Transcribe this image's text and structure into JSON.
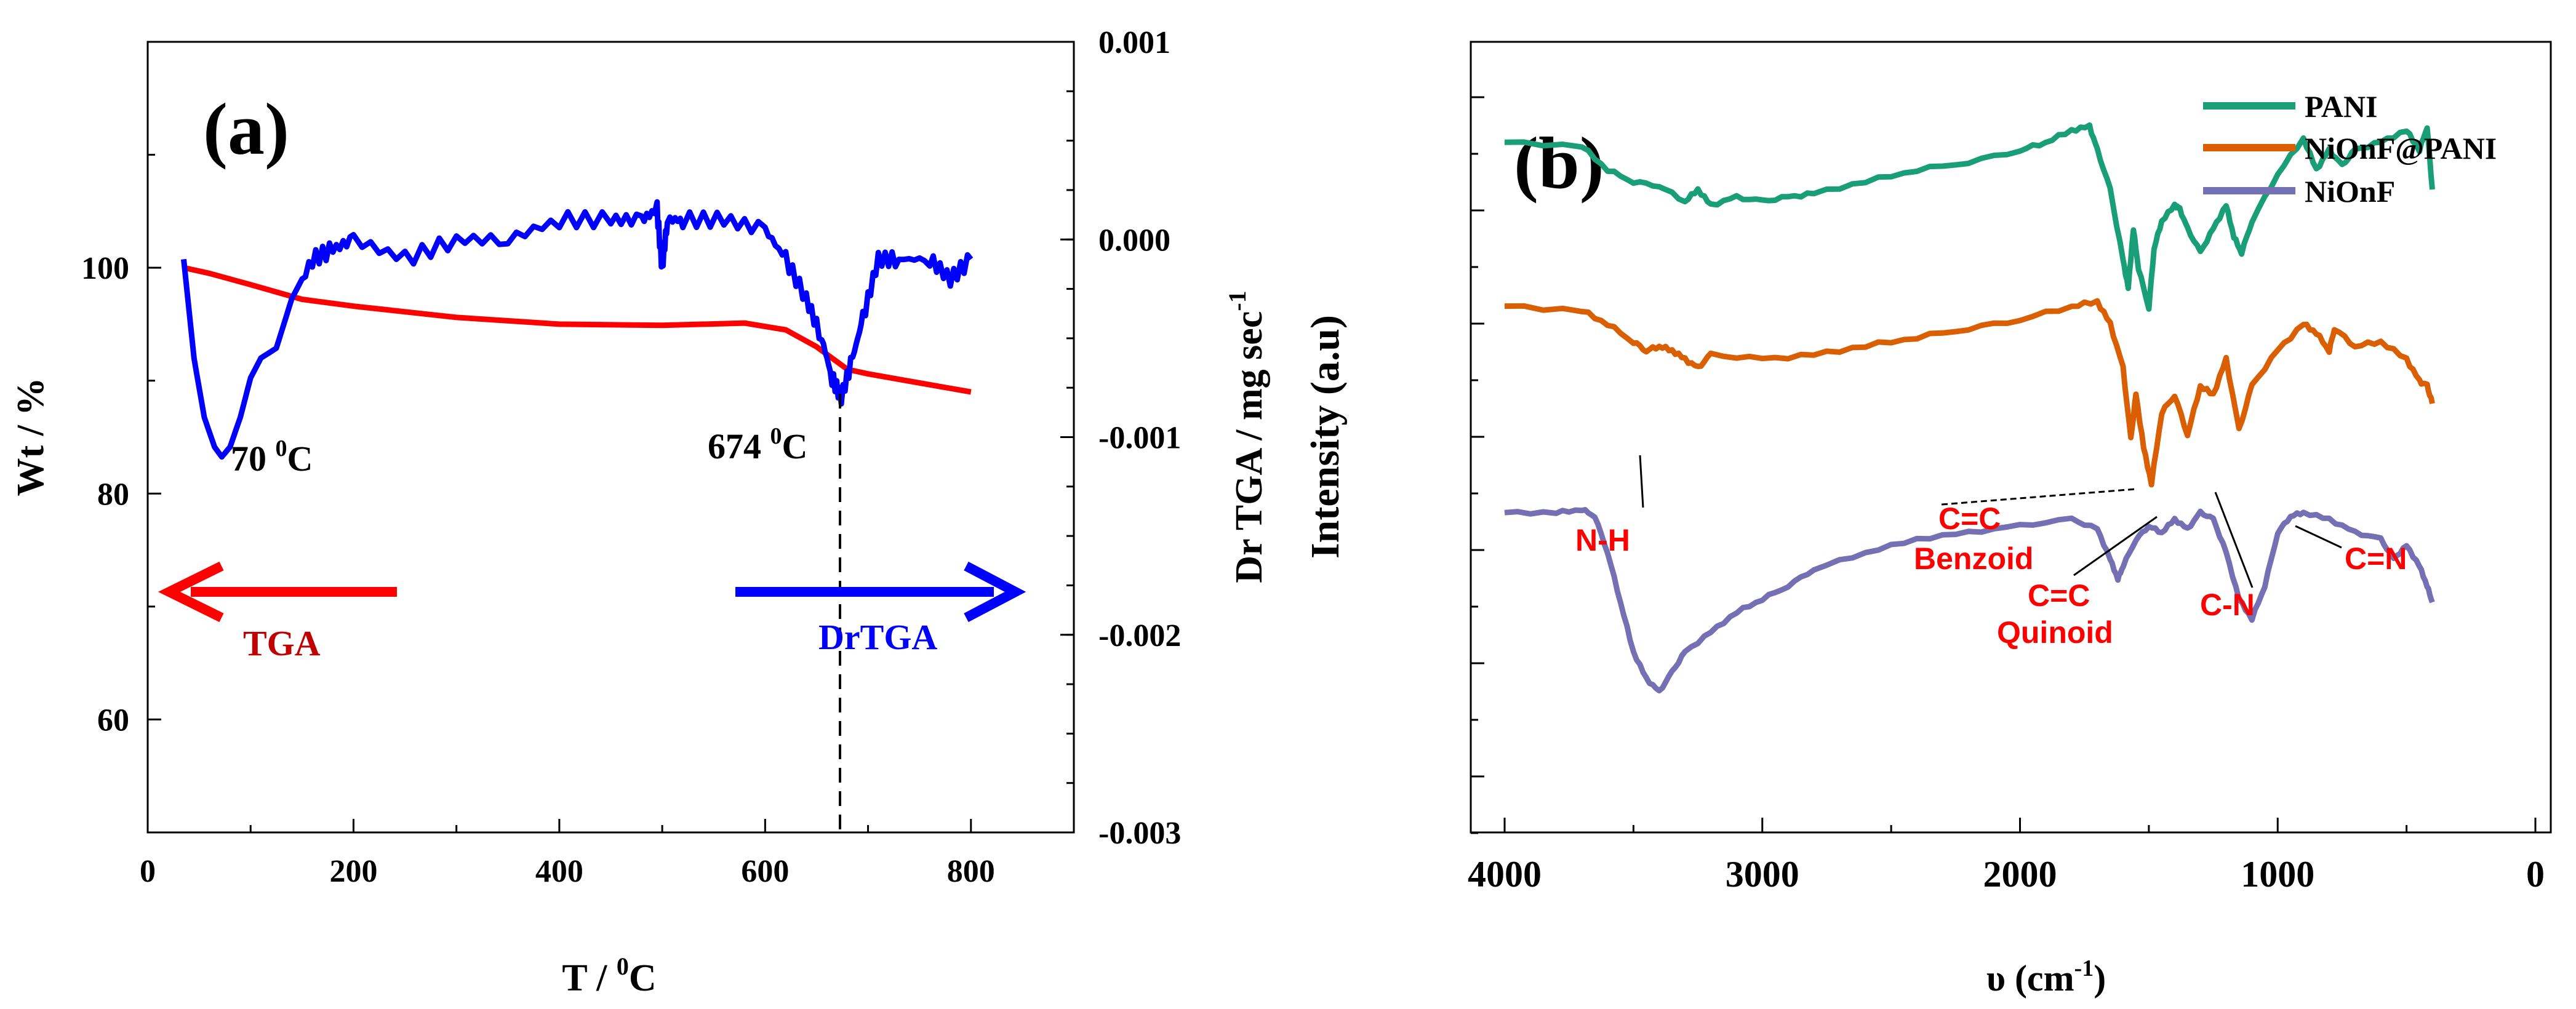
{
  "chart_data": [
    {
      "panel": "(a)",
      "type": "line",
      "xlabel_base": "T / ",
      "xlabel_sup": "0",
      "xlabel_end": "C",
      "ylabel_left": "Wt / %",
      "ylabel_right_base": "Dr TGA / mg sec",
      "ylabel_right_sup": "-1",
      "xlim": [
        0,
        900
      ],
      "ylim_left": [
        50,
        120
      ],
      "ylim_right": [
        -0.003,
        0.001
      ],
      "x_ticks": [
        "0",
        "200",
        "400",
        "600",
        "800"
      ],
      "y_ticks_left": [
        "60",
        "80",
        "100"
      ],
      "y_ticks_right": [
        "0.001",
        "0.000",
        "-0.001",
        "-0.002",
        "-0.003"
      ],
      "series": [
        {
          "name": "TGA",
          "axis": "left",
          "color": "#ff0000",
          "x": [
            35,
            60,
            100,
            150,
            200,
            300,
            400,
            500,
            580,
            620,
            650,
            680,
            700,
            750,
            800
          ],
          "y": [
            100,
            99.5,
            98.5,
            97.2,
            96.6,
            95.6,
            95.0,
            94.9,
            95.1,
            94.5,
            93.0,
            91.0,
            90.6,
            89.8,
            89.0
          ]
        },
        {
          "name": "DrTGA",
          "axis": "right",
          "color": "#0000ff",
          "x": [
            35,
            45,
            55,
            65,
            72,
            80,
            90,
            100,
            110,
            125,
            140,
            160,
            180,
            200,
            250,
            300,
            350,
            400,
            450,
            480,
            495,
            500,
            505,
            520,
            560,
            600,
            620,
            640,
            655,
            665,
            674,
            685,
            695,
            710,
            730,
            760,
            780,
            800
          ],
          "y": [
            -0.0001,
            -0.0006,
            -0.0009,
            -0.00105,
            -0.0011,
            -0.00105,
            -0.0009,
            -0.0007,
            -0.0006,
            -0.00055,
            -0.0003,
            -0.0001,
            -5e-05,
            0.0,
            -0.0001,
            0.0,
            0.0,
            0.0001,
            0.0001,
            0.0001,
            0.00015,
            -0.00015,
            0.0001,
            0.0001,
            0.0001,
            5e-05,
            -0.0001,
            -0.0003,
            -0.0005,
            -0.0007,
            -0.0008,
            -0.0006,
            -0.0004,
            -0.0001,
            -0.0001,
            -0.0001,
            -0.0002,
            -0.0001
          ]
        }
      ],
      "annotations": [
        {
          "id": "peak1",
          "base": "70 ",
          "sup": "0",
          "end": "C"
        },
        {
          "id": "peak2",
          "base": "674 ",
          "sup": "0",
          "end": "C"
        },
        {
          "id": "tga_label",
          "text": "TGA"
        },
        {
          "id": "drtga_label",
          "text": "DrTGA"
        }
      ]
    },
    {
      "panel": "(b)",
      "type": "line",
      "xlabel_base": "υ (cm",
      "xlabel_sup": "-1",
      "xlabel_end": ")",
      "ylabel": "Intensity (a.u)",
      "xlim": [
        4000,
        0
      ],
      "x_ticks": [
        "4000",
        "3000",
        "2000",
        "1000",
        "0"
      ],
      "series": [
        {
          "name": "PANI",
          "color": "#1a9e77",
          "x": [
            4000,
            3700,
            3600,
            3500,
            3400,
            3300,
            3250,
            3200,
            3100,
            3000,
            2900,
            2800,
            2600,
            2400,
            2200,
            2000,
            1900,
            1800,
            1730,
            1700,
            1650,
            1600,
            1580,
            1560,
            1540,
            1500,
            1480,
            1450,
            1400,
            1380,
            1350,
            1300,
            1250,
            1200,
            1170,
            1140,
            1100,
            1000,
            900,
            850,
            800,
            750,
            700,
            600,
            500,
            450,
            420,
            400
          ],
          "y": [
            0.92,
            0.91,
            0.85,
            0.82,
            0.81,
            0.77,
            0.8,
            0.76,
            0.78,
            0.77,
            0.78,
            0.79,
            0.82,
            0.85,
            0.87,
            0.9,
            0.92,
            0.95,
            0.96,
            0.9,
            0.8,
            0.62,
            0.55,
            0.7,
            0.6,
            0.5,
            0.65,
            0.72,
            0.76,
            0.75,
            0.7,
            0.64,
            0.7,
            0.76,
            0.68,
            0.64,
            0.72,
            0.84,
            0.93,
            0.85,
            0.9,
            0.86,
            0.9,
            0.92,
            0.95,
            0.9,
            0.96,
            0.8
          ]
        },
        {
          "name": "NiOnF@PANI",
          "color": "#d95f02",
          "x": [
            4000,
            3700,
            3600,
            3500,
            3450,
            3400,
            3350,
            3300,
            3250,
            3200,
            3000,
            2800,
            2600,
            2400,
            2200,
            2000,
            1800,
            1700,
            1650,
            1600,
            1570,
            1550,
            1520,
            1490,
            1450,
            1400,
            1350,
            1300,
            1250,
            1200,
            1150,
            1100,
            1000,
            900,
            850,
            800,
            780,
            700,
            600,
            500,
            450,
            420,
            400
          ],
          "y": [
            0.92,
            0.91,
            0.88,
            0.84,
            0.82,
            0.83,
            0.82,
            0.8,
            0.78,
            0.81,
            0.8,
            0.81,
            0.83,
            0.85,
            0.87,
            0.89,
            0.92,
            0.93,
            0.88,
            0.78,
            0.62,
            0.72,
            0.6,
            0.52,
            0.68,
            0.72,
            0.63,
            0.74,
            0.72,
            0.8,
            0.64,
            0.74,
            0.82,
            0.88,
            0.86,
            0.82,
            0.87,
            0.83,
            0.84,
            0.8,
            0.75,
            0.74,
            0.7
          ]
        },
        {
          "name": "NiOnF",
          "color": "#7570b3",
          "x": [
            4000,
            3800,
            3700,
            3650,
            3600,
            3550,
            3500,
            3450,
            3400,
            3350,
            3300,
            3200,
            3100,
            3000,
            2900,
            2800,
            2600,
            2400,
            2200,
            2000,
            1800,
            1700,
            1650,
            1620,
            1600,
            1550,
            1500,
            1450,
            1400,
            1350,
            1300,
            1250,
            1200,
            1150,
            1100,
            1050,
            1000,
            950,
            900,
            800,
            700,
            600,
            550,
            500,
            450,
            420,
            400
          ],
          "y": [
            0.92,
            0.92,
            0.93,
            0.91,
            0.8,
            0.65,
            0.5,
            0.42,
            0.38,
            0.44,
            0.5,
            0.56,
            0.62,
            0.66,
            0.7,
            0.75,
            0.8,
            0.84,
            0.86,
            0.88,
            0.9,
            0.87,
            0.78,
            0.72,
            0.76,
            0.84,
            0.88,
            0.86,
            0.9,
            0.87,
            0.92,
            0.9,
            0.8,
            0.66,
            0.6,
            0.7,
            0.86,
            0.91,
            0.92,
            0.9,
            0.86,
            0.84,
            0.78,
            0.82,
            0.76,
            0.7,
            0.65
          ]
        }
      ],
      "legend": [
        "PANI",
        "NiOnF@PANI",
        "NiOnF"
      ],
      "annotations": [
        {
          "id": "nh",
          "text": "N-H"
        },
        {
          "id": "cc_benzoid_1",
          "text": "C=C"
        },
        {
          "id": "cc_benzoid_2",
          "text": "Benzoid"
        },
        {
          "id": "cc_quinoid_1",
          "text": "C=C"
        },
        {
          "id": "cc_quinoid_2",
          "text": "Quinoid"
        },
        {
          "id": "cn",
          "text": "C-N"
        },
        {
          "id": "c_eq_n",
          "text": "C=N"
        }
      ]
    }
  ]
}
